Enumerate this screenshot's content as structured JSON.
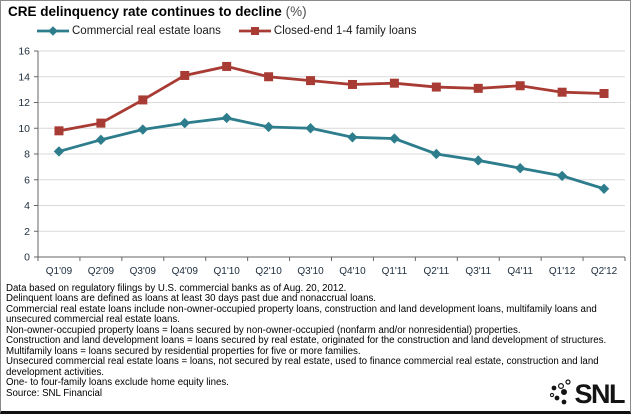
{
  "title": "CRE delinquency rate continues to decline",
  "title_suffix": "(%)",
  "chart_data": {
    "type": "line",
    "categories": [
      "Q1'09",
      "Q2'09",
      "Q3'09",
      "Q4'09",
      "Q1'10",
      "Q2'10",
      "Q3'10",
      "Q4'10",
      "Q1'11",
      "Q2'11",
      "Q3'11",
      "Q4'11",
      "Q1'12",
      "Q2'12"
    ],
    "series": [
      {
        "name": "Commercial real estate loans",
        "color": "#2E7D8D",
        "marker": "diamond",
        "values": [
          8.2,
          9.1,
          9.9,
          10.4,
          10.8,
          10.1,
          10.0,
          9.3,
          9.2,
          8.0,
          7.5,
          6.9,
          6.3,
          5.3
        ]
      },
      {
        "name": "Closed-end 1-4 family loans",
        "color": "#A83B34",
        "marker": "square",
        "values": [
          9.8,
          10.4,
          12.2,
          14.1,
          14.8,
          14.0,
          13.7,
          13.4,
          13.5,
          13.2,
          13.1,
          13.3,
          12.8,
          12.7
        ]
      }
    ],
    "title": "CRE delinquency rate continues to decline (%)",
    "xlabel": "",
    "ylabel": "",
    "ylim": [
      0,
      16
    ],
    "ytick_step": 2,
    "grid": true,
    "legend_position": "top"
  },
  "colors": {
    "gridline": "#d9d9d9",
    "axis": "#666666",
    "axis_label": "#20303f"
  },
  "footnotes": [
    "Data based on regulatory filings by U.S. commercial banks as of Aug. 20, 2012.",
    "Delinquent loans are defined as loans at least 30 days past due and nonaccrual loans.",
    "Commercial real estate loans include non-owner-occupied property loans, construction and land development loans, multifamily loans and",
    "unsecured commercial real estate loans.",
    "Non-owner-occupied property loans = loans secured by non-owner-occupied (nonfarm and/or nonresidential) properties.",
    "Construction and land development loans = loans secured by real estate, originated for the construction and land development of structures.",
    "Multifamily loans = loans secured by residential properties for five or more families.",
    "Unsecured commercial real estate loans = loans, not secured by real estate, used to finance commercial real estate, construction and land",
    "development activities.",
    "One- to four-family loans exclude home equity lines.",
    "Source: SNL Financial"
  ],
  "logo_text": "SNL"
}
